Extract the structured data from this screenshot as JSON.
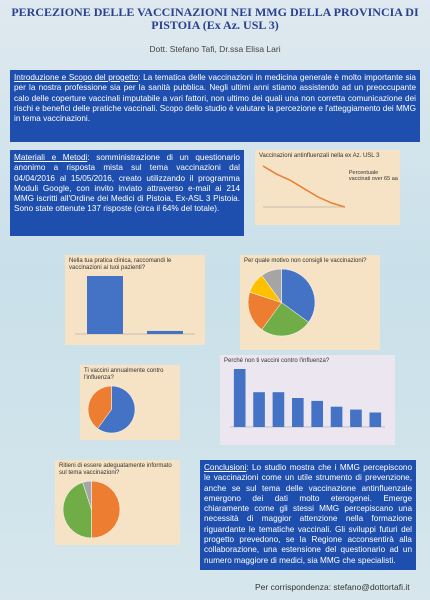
{
  "header": {
    "title": "PERCEZIONE DELLE VACCINAZIONI NEI MMG DELLA PROVINCIA DI PISTOIA (Ex Az. USL 3)",
    "authors": "Dott. Stefano Tafi, Dr.ssa Elisa Lari"
  },
  "intro": {
    "label": "Introduzione e Scopo del progetto",
    "text": ": La tematica delle vaccinazioni in medicina generale è molto importante sia per la nostra professione sia per la sanità pubblica. Negli ultimi anni stiamo assistendo ad un preoccupante calo delle coperture vaccinali imputabile a vari fattori, non ultimo dei quali una non corretta comunicazione dei rischi e benefici delle pratiche vaccinali. Scopo dello studio è valutare la percezione e l'atteggiamento dei MMG in tema vaccinazioni."
  },
  "methods": {
    "label": "Materiali e Metodi",
    "text": ": somministrazione di un questionario anonimo a risposta mista sul tema vaccinazioni dal 04/04/2016 al 15/05/2016, creato utilizzando il programma Moduli Google, con invito inviato attraverso e-mail ai 214 MMG iscritti all'Ordine dei Medici di Pistoia, Ex-ASL 3 Pistoia. Sono state ottenute 137 risposte (circa il 64% del totale)."
  },
  "charts": [
    {
      "type": "line",
      "title": "Vaccinazioni antinfluenzali nella ex Az. USL 3",
      "series": [
        {
          "name": "Percentuale vaccinati over 65 aa",
          "color": "#ed7d31",
          "values": [
            72,
            68,
            65,
            61,
            57,
            54,
            52
          ]
        }
      ]
    },
    {
      "type": "bar",
      "title": "Nella tua pratica clinica, raccomandi le vaccinazioni ai tuoi pazienti?",
      "color": "#4472c4",
      "values": [
        95,
        5
      ]
    },
    {
      "type": "pie",
      "title": "Per quale motivo non consigli le vaccinazioni?",
      "colors": [
        "#4472c4",
        "#70ad47",
        "#ed7d31",
        "#ffc000",
        "#a5a5a5"
      ],
      "values": [
        35,
        25,
        20,
        10,
        10
      ]
    },
    {
      "type": "pie",
      "title": "Ti vaccini annualmente contro l'influenza?",
      "colors": [
        "#4472c4",
        "#ed7d31"
      ],
      "values": [
        60,
        40
      ]
    },
    {
      "type": "bar",
      "title": "Perché non ti vaccini contro l'influenza?",
      "color": "#4472c4",
      "values": [
        10,
        6,
        6,
        5,
        4.5,
        3.5,
        3,
        2.5
      ]
    },
    {
      "type": "pie",
      "title": "Ritieni di essere adeguatamente informato sul tema vaccinazioni?",
      "colors": [
        "#ed7d31",
        "#70ad47",
        "#a5a5a5"
      ],
      "values": [
        50,
        45,
        5
      ]
    }
  ],
  "conclusions": {
    "label": "Conclusioni",
    "text": ": Lo studio mostra che i MMG percepiscono le vaccinazioni come un utile strumento di prevenzione, anche se sul tema delle vaccinazione antinfluenzale emergono dei dati molto eterogenei. Emerge chiaramente come gli stessi MMG percepiscano una necessità di maggior attenzione nella formazione riguardante le tematiche vaccinali. Gli sviluppi futuri del progetto prevedono, se la Regione acconsentirà alla collaborazione, una estensione del questionario ad un numero maggiore di medici, sia MMG che specialisti."
  },
  "footer": "Per corrispondenza: stefano@dottortafi.it"
}
